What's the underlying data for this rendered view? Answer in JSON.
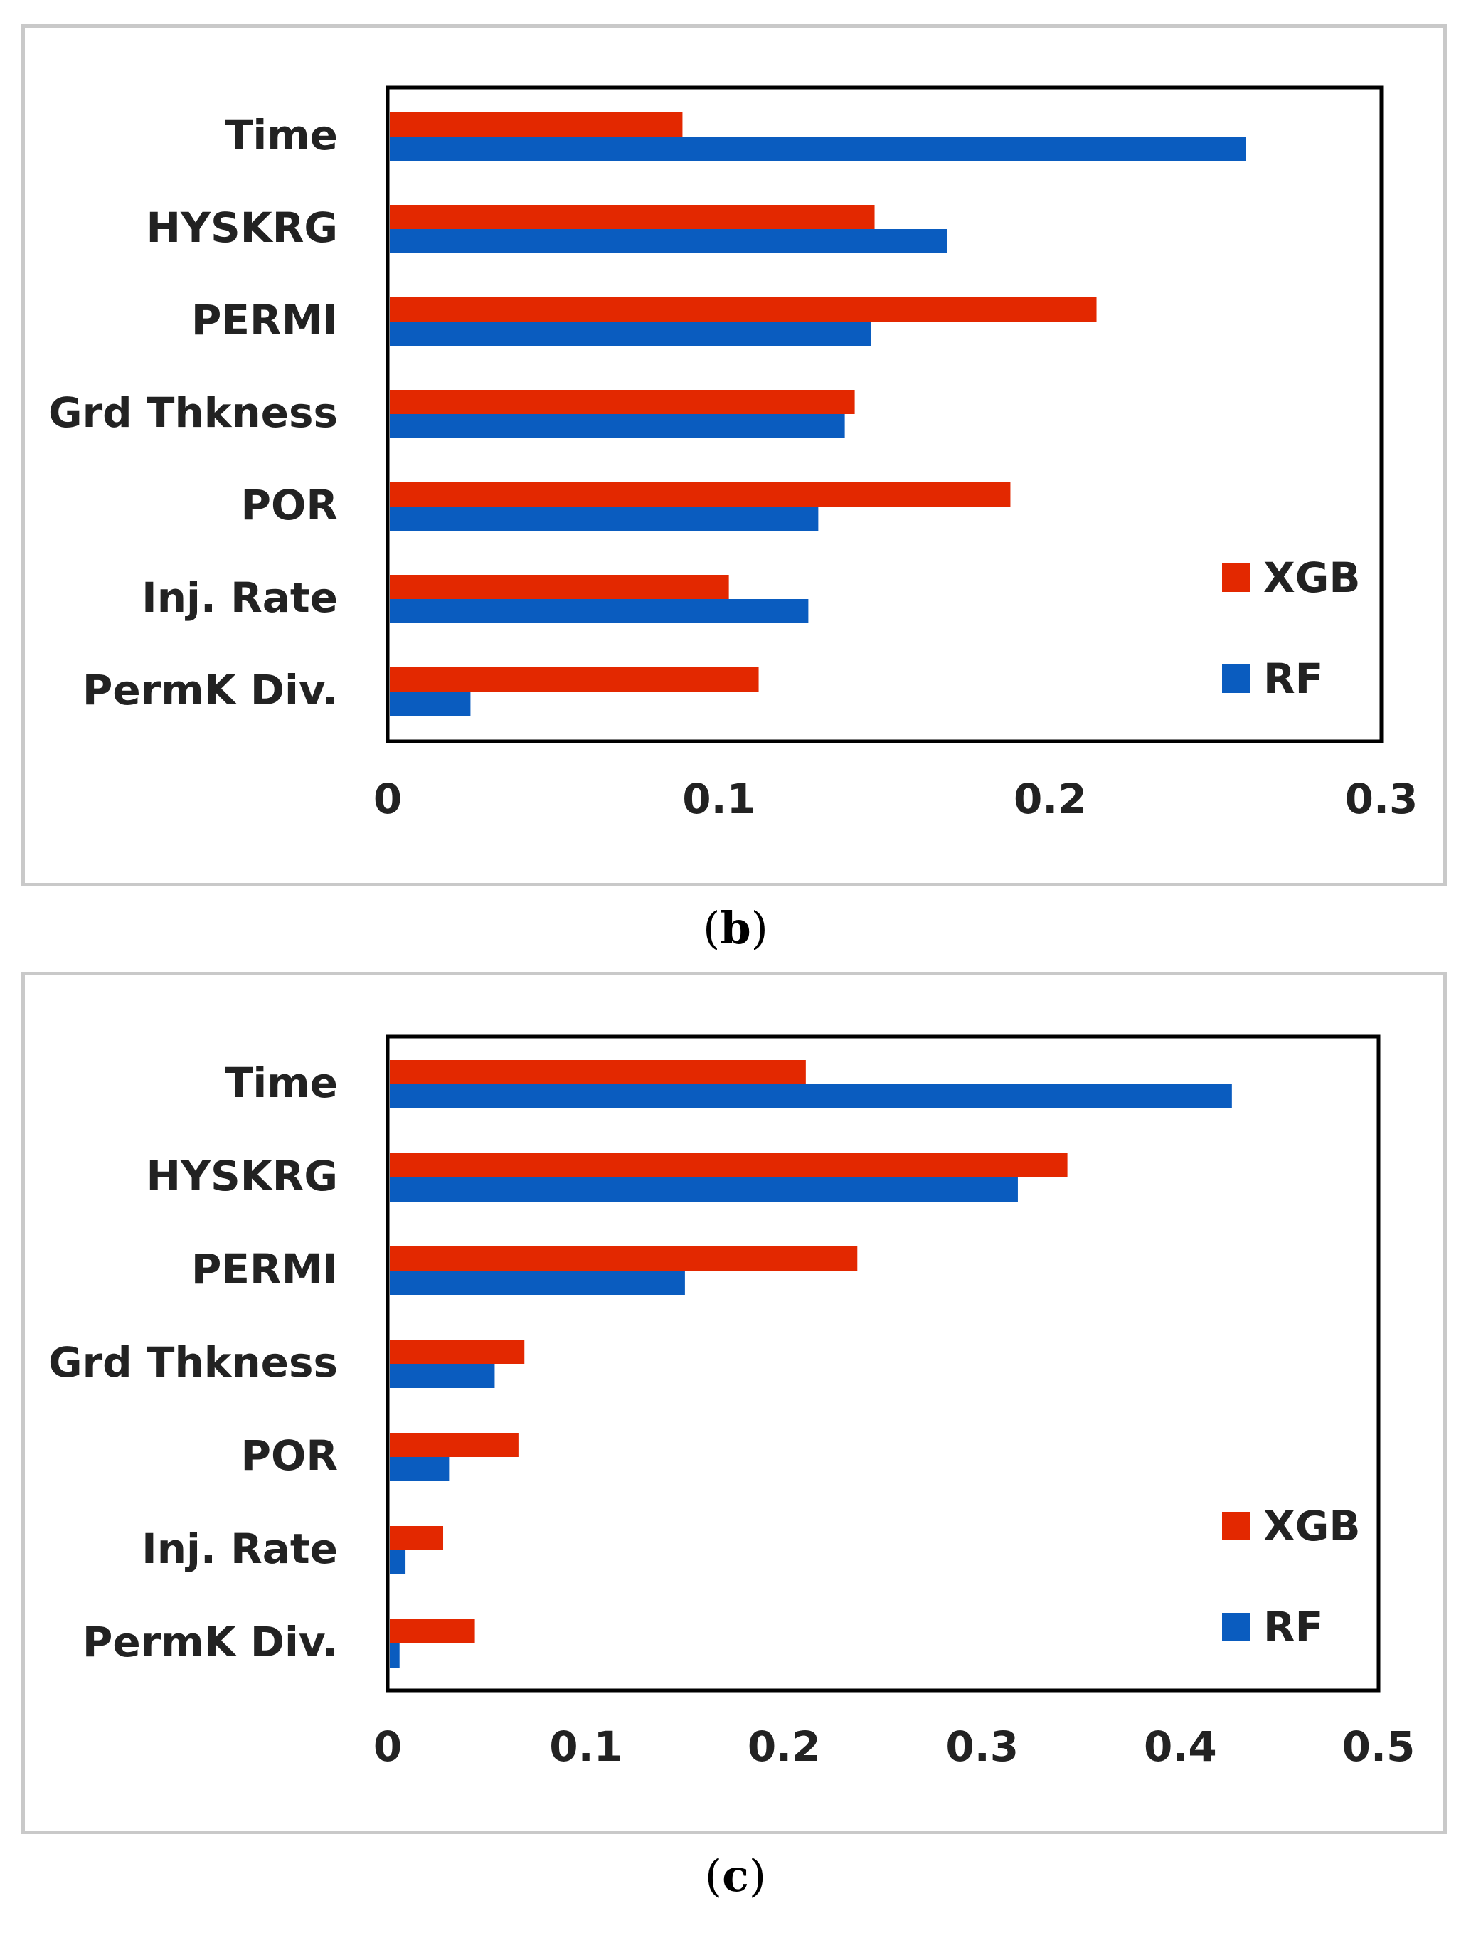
{
  "captions": {
    "b": "b",
    "c": "c"
  },
  "chart_data": [
    {
      "panel": "b",
      "type": "bar",
      "orientation": "horizontal",
      "categories": [
        "Time",
        "HYSKRG",
        "PERMI",
        "Grd Thkness",
        "POR",
        "Inj. Rate",
        "PermK Div."
      ],
      "series": [
        {
          "name": "XGB",
          "color": "#e32800",
          "values": [
            0.089,
            0.147,
            0.214,
            0.141,
            0.188,
            0.103,
            0.112
          ]
        },
        {
          "name": "RF",
          "color": "#0a5cbf",
          "values": [
            0.259,
            0.169,
            0.146,
            0.138,
            0.13,
            0.127,
            0.025
          ]
        }
      ],
      "xlim": [
        0,
        0.3
      ],
      "xticks": [
        "0",
        "0.1",
        "0.2",
        "0.3"
      ],
      "legend": "bottom-right",
      "grid": false
    },
    {
      "panel": "c",
      "type": "bar",
      "orientation": "horizontal",
      "categories": [
        "Time",
        "HYSKRG",
        "PERMI",
        "Grd Thkness",
        "POR",
        "Inj. Rate",
        "PermK Div."
      ],
      "series": [
        {
          "name": "XGB",
          "color": "#e32800",
          "values": [
            0.211,
            0.343,
            0.237,
            0.069,
            0.066,
            0.028,
            0.044
          ]
        },
        {
          "name": "RF",
          "color": "#0a5cbf",
          "values": [
            0.426,
            0.318,
            0.15,
            0.054,
            0.031,
            0.009,
            0.006
          ]
        }
      ],
      "xlim": [
        0,
        0.5
      ],
      "xticks": [
        "0",
        "0.1",
        "0.2",
        "0.3",
        "0.4",
        "0.5"
      ],
      "legend": "bottom-right",
      "grid": false
    }
  ]
}
